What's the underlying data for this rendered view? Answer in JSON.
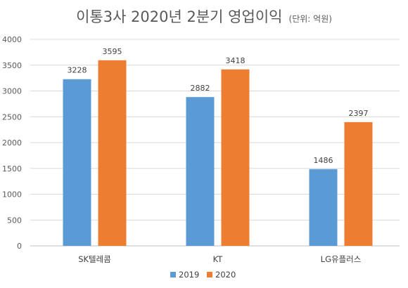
{
  "chart_data": {
    "type": "bar",
    "title": "이통3사 2020년 2분기 영업이익",
    "subtitle": "(단위: 억원)",
    "categories": [
      "SK텔레콤",
      "KT",
      "LG유플러스"
    ],
    "series": [
      {
        "name": "2019",
        "values": [
          3228,
          2882,
          1486
        ],
        "color": "#5B9BD5"
      },
      {
        "name": "2020",
        "values": [
          3595,
          3418,
          2397
        ],
        "color": "#ED7D31"
      }
    ],
    "ylim": [
      0,
      4000
    ],
    "yticks": [
      0,
      500,
      1000,
      1500,
      2000,
      2500,
      3000,
      3500,
      4000
    ],
    "grid": true,
    "legend": "bottom",
    "data_labels": true,
    "xlabel": "",
    "ylabel": ""
  }
}
